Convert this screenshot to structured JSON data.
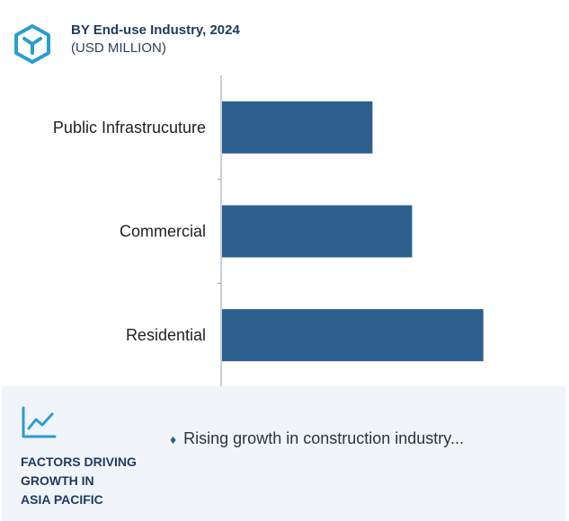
{
  "header": {
    "title": "BY End-use Industry, 2024",
    "subtitle": "(USD MILLION)",
    "logo_icon": "cube-hexagon-icon"
  },
  "chart_data": {
    "type": "bar",
    "orientation": "horizontal",
    "categories": [
      "Public Infrastrucuture",
      "Commercial",
      "Residential"
    ],
    "values": [
      19,
      24,
      33
    ],
    "xlim": [
      0,
      42
    ],
    "grid": false,
    "bar_color": "#2c5f8d"
  },
  "footer": {
    "icon": "trend-line-icon",
    "heading_lines": [
      "FACTORS DRIVING",
      "GROWTH IN",
      "ASIA PACIFIC"
    ],
    "bullet_text": "Rising growth in construction industry...",
    "bullet_icon": "diamond-icon"
  },
  "colors": {
    "accent": "#2a9dd0",
    "bar": "#2c5f8d",
    "heading": "#1f3a5f",
    "panel": "#f1f4f8"
  }
}
